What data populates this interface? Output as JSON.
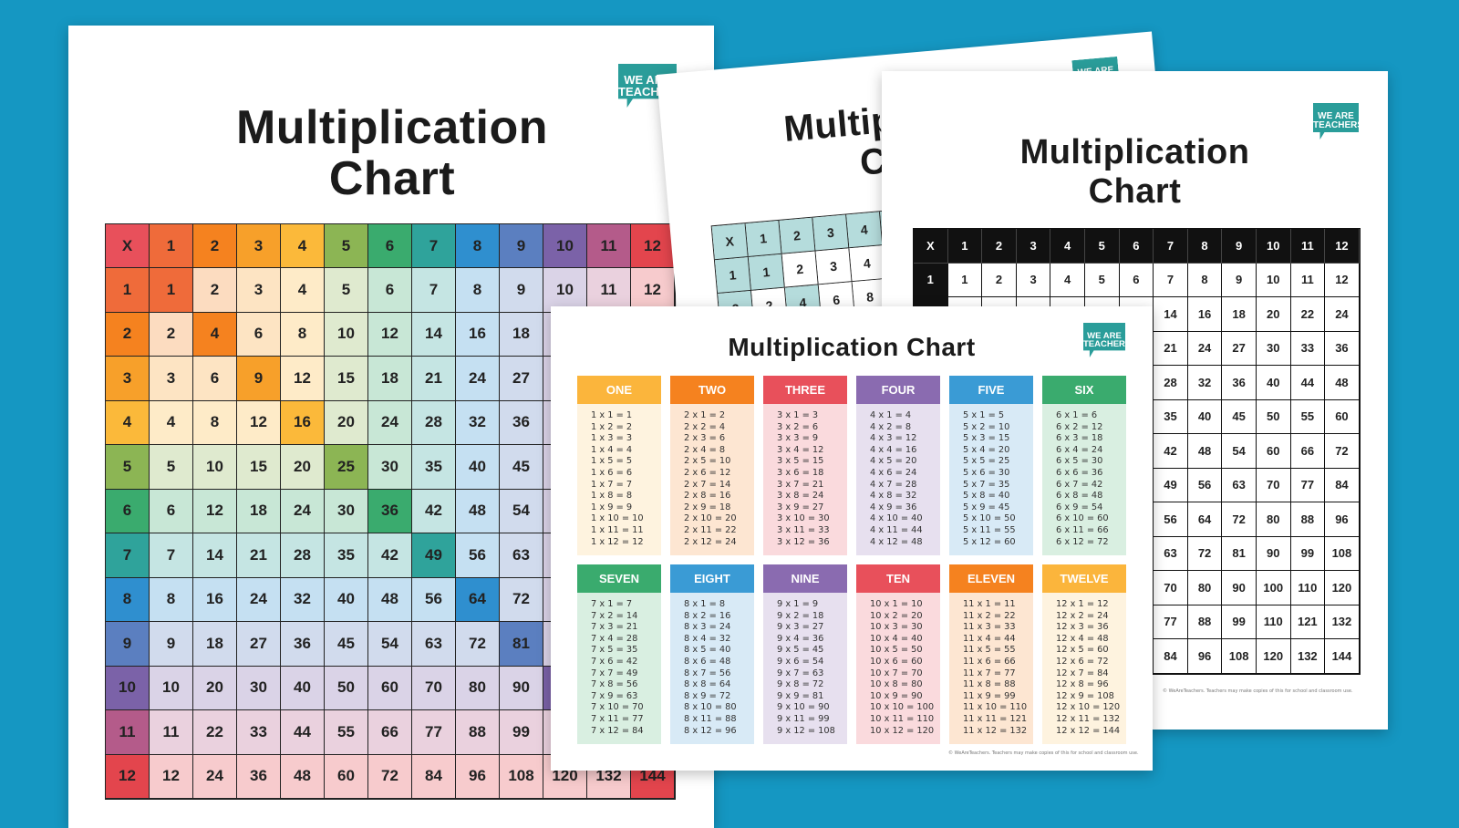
{
  "brand": {
    "logo_line1": "WE ARE",
    "logo_line2": "TEACHERS",
    "logo_color": "#2a9d9a",
    "background": "#1597c2"
  },
  "sheets": {
    "left": {
      "title_line1": "Multiplication",
      "title_line2": "Chart"
    },
    "middle": {
      "title_line1": "Multiplication",
      "title_line2": "Chart",
      "accent": "#b5dcdc"
    },
    "right": {
      "title_line1": "Multiplication",
      "title_line2": "Chart",
      "footer": "© WeAreTeachers. Teachers may make copies of this for school and classroom use."
    },
    "front": {
      "title": "Multiplication Chart",
      "footer": "© WeAreTeachers. Teachers may make copies of this for school and classroom use."
    }
  },
  "row_colors": [
    "#e8505b",
    "#ef6b3a",
    "#f5821f",
    "#f7a02a",
    "#fbb93a",
    "#8cb554",
    "#3aab6e",
    "#2fa39b",
    "#2f8fcf",
    "#5b7fc0",
    "#7b62a8",
    "#b45b8a",
    "#e3454d"
  ],
  "grid": [
    [
      "X",
      "1",
      "2",
      "3",
      "4",
      "5",
      "6",
      "7",
      "8",
      "9",
      "10",
      "11",
      "12"
    ],
    [
      "1",
      "1",
      "2",
      "3",
      "4",
      "5",
      "6",
      "7",
      "8",
      "9",
      "10",
      "11",
      "12"
    ],
    [
      "2",
      "2",
      "4",
      "6",
      "8",
      "10",
      "12",
      "14",
      "16",
      "18",
      "20",
      "22",
      "24"
    ],
    [
      "3",
      "3",
      "6",
      "9",
      "12",
      "15",
      "18",
      "21",
      "24",
      "27",
      "30",
      "33",
      "36"
    ],
    [
      "4",
      "4",
      "8",
      "12",
      "16",
      "20",
      "24",
      "28",
      "32",
      "36",
      "40",
      "44",
      "48"
    ],
    [
      "5",
      "5",
      "10",
      "15",
      "20",
      "25",
      "30",
      "35",
      "40",
      "45",
      "50",
      "55",
      "60"
    ],
    [
      "6",
      "6",
      "12",
      "18",
      "24",
      "30",
      "36",
      "42",
      "48",
      "54",
      "60",
      "66",
      "72"
    ],
    [
      "7",
      "7",
      "14",
      "21",
      "28",
      "35",
      "42",
      "49",
      "56",
      "63",
      "70",
      "77",
      "84"
    ],
    [
      "8",
      "8",
      "16",
      "24",
      "32",
      "40",
      "48",
      "56",
      "64",
      "72",
      "80",
      "88",
      "96"
    ],
    [
      "9",
      "9",
      "18",
      "27",
      "36",
      "45",
      "54",
      "63",
      "72",
      "81",
      "90",
      "99",
      "108"
    ],
    [
      "10",
      "10",
      "20",
      "30",
      "40",
      "50",
      "60",
      "70",
      "80",
      "90",
      "100",
      "110",
      "120"
    ],
    [
      "11",
      "11",
      "22",
      "33",
      "44",
      "55",
      "66",
      "77",
      "88",
      "99",
      "110",
      "121",
      "132"
    ],
    [
      "12",
      "12",
      "24",
      "36",
      "48",
      "60",
      "72",
      "84",
      "96",
      "108",
      "120",
      "132",
      "144"
    ]
  ],
  "fact_tables": [
    {
      "label": "ONE",
      "color": "#fbb53c",
      "tint": "#fef3df",
      "facts": [
        "1 x 1 = 1",
        "1 x 2 = 2",
        "1 x 3 = 3",
        "1 x 4 = 4",
        "1 x 5 = 5",
        "1 x 6 = 6",
        "1 x 7 = 7",
        "1 x 8 = 8",
        "1 x 9 = 9",
        "1 x 10 = 10",
        "1 x 11 = 11",
        "1 x 12 = 12"
      ]
    },
    {
      "label": "TWO",
      "color": "#f5821f",
      "tint": "#fde6d2",
      "facts": [
        "2 x 1 = 2",
        "2 x 2 = 4",
        "2 x 3 = 6",
        "2 x 4 = 8",
        "2 x 5 = 10",
        "2 x 6 = 12",
        "2 x 7 = 14",
        "2 x 8 = 16",
        "2 x 9 = 18",
        "2 x 10 = 20",
        "2 x 11 = 22",
        "2 x 12 = 24"
      ]
    },
    {
      "label": "THREE",
      "color": "#e8505b",
      "tint": "#fadadd",
      "facts": [
        "3 x 1 = 3",
        "3 x 2 = 6",
        "3 x 3 = 9",
        "3 x 4 = 12",
        "3 x 5 = 15",
        "3 x 6 = 18",
        "3 x 7 = 21",
        "3 x 8 = 24",
        "3 x 9 = 27",
        "3 x 10 = 30",
        "3 x 11 = 33",
        "3 x 12 = 36"
      ]
    },
    {
      "label": "FOUR",
      "color": "#8a6bb0",
      "tint": "#e7e0ef",
      "facts": [
        "4 x 1 = 4",
        "4 x 2 = 8",
        "4 x 3 = 12",
        "4 x 4 = 16",
        "4 x 5 = 20",
        "4 x 6 = 24",
        "4 x 7 = 28",
        "4 x 8 = 32",
        "4 x 9 = 36",
        "4 x 10 = 40",
        "4 x 11 = 44",
        "4 x 12 = 48"
      ]
    },
    {
      "label": "FIVE",
      "color": "#3a9bd5",
      "tint": "#d8eaf6",
      "facts": [
        "5 x 1 = 5",
        "5 x 2 = 10",
        "5 x 3 = 15",
        "5 x 4 = 20",
        "5 x 5 = 25",
        "5 x 6 = 30",
        "5 x 7 = 35",
        "5 x 8 = 40",
        "5 x 9 = 45",
        "5 x 10 = 50",
        "5 x 11 = 55",
        "5 x 12 = 60"
      ]
    },
    {
      "label": "SIX",
      "color": "#3aab6e",
      "tint": "#d9efe1",
      "facts": [
        "6 x 1 = 6",
        "6 x 2 = 12",
        "6 x 3 = 18",
        "6 x 4 = 24",
        "6 x 5 = 30",
        "6 x 6 = 36",
        "6 x 7 = 42",
        "6 x 8 = 48",
        "6 x 9 = 54",
        "6 x 10 = 60",
        "6 x 11 = 66",
        "6 x 12 = 72"
      ]
    },
    {
      "label": "SEVEN",
      "color": "#3aab6e",
      "tint": "#d9efe1",
      "facts": [
        "7 x 1 = 7",
        "7 x 2 = 14",
        "7 x 3 = 21",
        "7 x 4 = 28",
        "7 x 5 = 35",
        "7 x 6 = 42",
        "7 x 7 = 49",
        "7 x 8 = 56",
        "7 x 9 = 63",
        "7 x 10 = 70",
        "7 x 11 = 77",
        "7 x 12 = 84"
      ]
    },
    {
      "label": "EIGHT",
      "color": "#3a9bd5",
      "tint": "#d8eaf6",
      "facts": [
        "8 x 1 = 8",
        "8 x 2 = 16",
        "8 x 3 = 24",
        "8 x 4 = 32",
        "8 x 5 = 40",
        "8 x 6 = 48",
        "8 x 7 = 56",
        "8 x 8 = 64",
        "8 x 9 = 72",
        "8 x 10 = 80",
        "8 x 11 = 88",
        "8 x 12 = 96"
      ]
    },
    {
      "label": "NINE",
      "color": "#8a6bb0",
      "tint": "#e7e0ef",
      "facts": [
        "9 x 1 = 9",
        "9 x 2 = 18",
        "9 x 3 = 27",
        "9 x 4 = 36",
        "9 x 5 = 45",
        "9 x 6 = 54",
        "9 x 7 = 63",
        "9 x 8 = 72",
        "9 x 9 = 81",
        "9 x 10 = 90",
        "9 x 11 = 99",
        "9 x 12 = 108"
      ]
    },
    {
      "label": "TEN",
      "color": "#e8505b",
      "tint": "#fadadd",
      "facts": [
        "10 x 1 = 10",
        "10 x 2 = 20",
        "10 x 3 = 30",
        "10 x 4 = 40",
        "10 x 5 = 50",
        "10 x 6 = 60",
        "10 x 7 = 70",
        "10 x 8 = 80",
        "10 x 9 = 90",
        "10 x 10 = 100",
        "10 x 11 = 110",
        "10 x 12 = 120"
      ]
    },
    {
      "label": "ELEVEN",
      "color": "#f5821f",
      "tint": "#fde6d2",
      "facts": [
        "11 x 1 = 11",
        "11 x 2 = 22",
        "11 x 3 = 33",
        "11 x 4 = 44",
        "11 x 5 = 55",
        "11 x 6 = 66",
        "11 x 7 = 77",
        "11 x 8 = 88",
        "11 x 9 = 99",
        "11 x 10 = 110",
        "11 x 11 = 121",
        "11 x 12 = 132"
      ]
    },
    {
      "label": "TWELVE",
      "color": "#fbb53c",
      "tint": "#fef3df",
      "facts": [
        "12 x 1 = 12",
        "12 x 2 = 24",
        "12 x 3 = 36",
        "12 x 4 = 48",
        "12 x 5 = 60",
        "12 x 6 = 72",
        "12 x 7 = 84",
        "12 x 8 = 96",
        "12 x 9 = 108",
        "12 x 10 = 120",
        "12 x 11 = 132",
        "12 x 12 = 144"
      ]
    }
  ]
}
